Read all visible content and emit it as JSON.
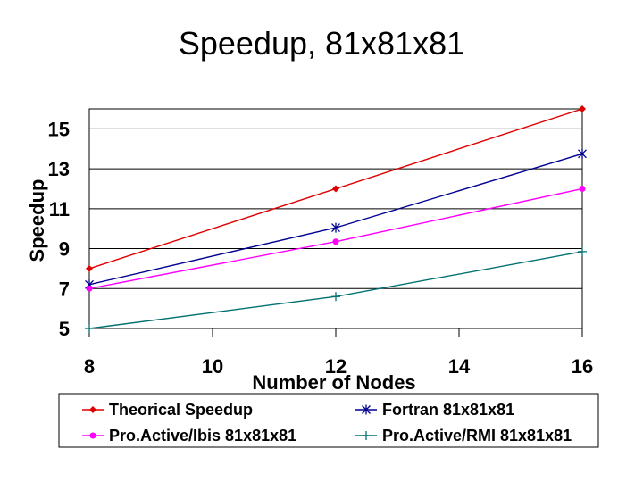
{
  "chart_data": {
    "type": "line",
    "title": "Speedup, 81x81x81",
    "xlabel": "Number of Nodes",
    "ylabel": "Speedup",
    "xlim": [
      8,
      16
    ],
    "ylim": [
      5,
      16
    ],
    "xticks": [
      8,
      10,
      12,
      14,
      16
    ],
    "yticks": [
      5,
      7,
      9,
      11,
      13,
      15
    ],
    "grid": "horizontal",
    "legend_position": "bottom",
    "series": [
      {
        "name": "Theorical Speedup",
        "color": "#e00000",
        "marker": "diamond",
        "x": [
          8,
          12,
          16
        ],
        "y": [
          8,
          12,
          16
        ]
      },
      {
        "name": "Fortran 81x81x81",
        "color": "#000090",
        "marker": "star",
        "x": [
          8,
          12,
          16
        ],
        "y": [
          7.2,
          10.05,
          13.75
        ]
      },
      {
        "name": "Pro.Active/Ibis 81x81x81",
        "color": "#ff00ff",
        "marker": "circle",
        "x": [
          8,
          12,
          16
        ],
        "y": [
          7,
          9.35,
          12
        ]
      },
      {
        "name": "Pro.Active/RMI 81x81x81",
        "color": "#007070",
        "marker": "plus",
        "x": [
          8,
          12,
          16
        ],
        "y": [
          5,
          6.6,
          8.85
        ]
      }
    ]
  }
}
